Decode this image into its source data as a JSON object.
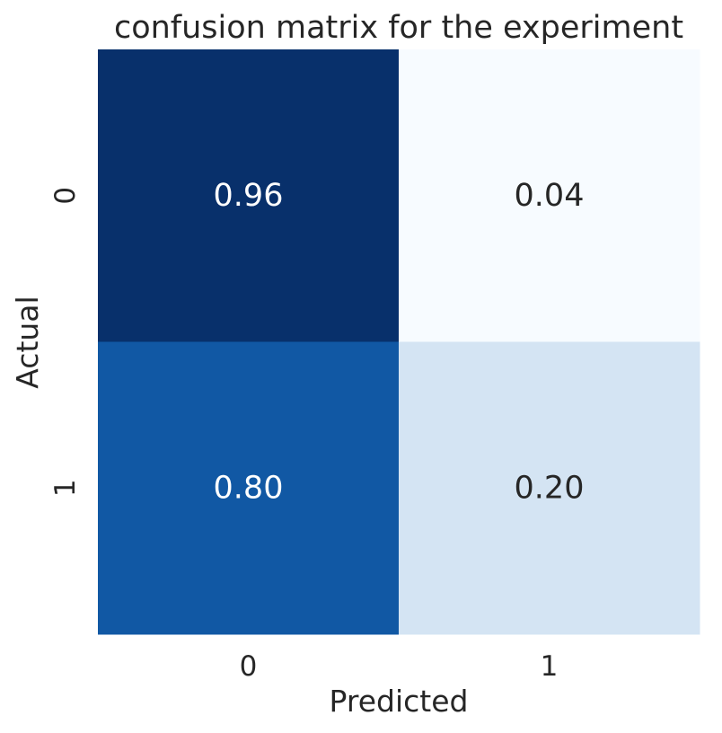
{
  "chart_data": {
    "type": "heatmap",
    "title": "confusion matrix for the experiment",
    "xlabel": "Predicted",
    "ylabel": "Actual",
    "x_categories": [
      "0",
      "1"
    ],
    "y_categories": [
      "0",
      "1"
    ],
    "values": [
      [
        0.96,
        0.04
      ],
      [
        0.8,
        0.2
      ]
    ],
    "annotations": [
      [
        "0.96",
        "0.04"
      ],
      [
        "0.80",
        "0.20"
      ]
    ],
    "colormap": "Blues",
    "value_range": [
      0,
      1
    ],
    "colors": {
      "cells": [
        [
          "#08306b",
          "#f7fbff"
        ],
        [
          "#1158a4",
          "#d4e4f3"
        ]
      ],
      "dark_cell_text": "#ffffff",
      "light_cell_text": "#262626",
      "axis_text": "#262626"
    },
    "colorbar": false,
    "grid": false
  }
}
